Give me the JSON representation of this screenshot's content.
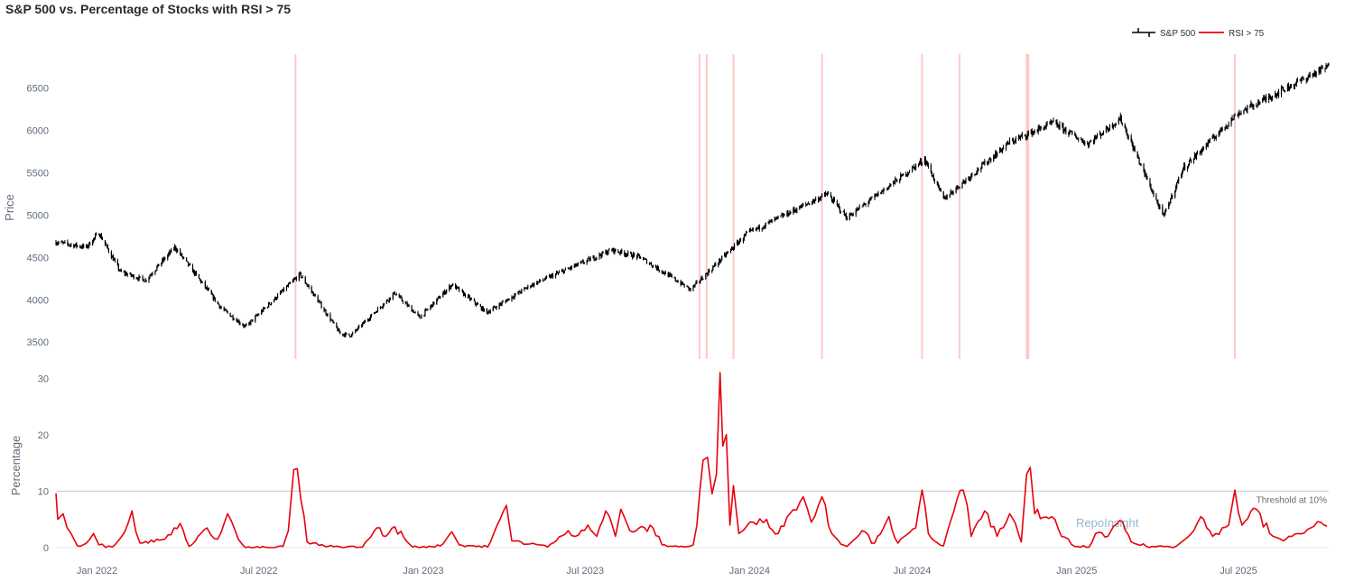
{
  "title": "S&P 500 vs. Percentage of Stocks with RSI > 75",
  "colors": {
    "price": "#000000",
    "rsi": "#e8000b",
    "band": "#ff9a9a",
    "threshold": "#c8c8c8"
  },
  "legend": {
    "price_label": "S&P 500",
    "rsi_label": "RSI > 75"
  },
  "watermark": "RepoInsight",
  "threshold_label": "Threshold at 10%",
  "chart_data": [
    {
      "type": "candlestick",
      "ylabel": "Price",
      "ylim": [
        3300,
        6900
      ],
      "yticks": [
        3500,
        4000,
        4500,
        5000,
        5500,
        6000,
        6500
      ],
      "xlim": [
        "2021-11-16",
        "2025-10-10"
      ],
      "anchors": [
        [
          "2021-11-16",
          4680
        ],
        [
          "2021-12-20",
          4620
        ],
        [
          "2022-01-03",
          4790
        ],
        [
          "2022-01-27",
          4330
        ],
        [
          "2022-02-24",
          4230
        ],
        [
          "2022-03-29",
          4620
        ],
        [
          "2022-05-20",
          3900
        ],
        [
          "2022-06-16",
          3680
        ],
        [
          "2022-08-16",
          4300
        ],
        [
          "2022-09-30",
          3600
        ],
        [
          "2022-10-12",
          3580
        ],
        [
          "2022-11-30",
          4080
        ],
        [
          "2022-12-28",
          3790
        ],
        [
          "2023-02-02",
          4180
        ],
        [
          "2023-03-13",
          3850
        ],
        [
          "2023-05-01",
          4170
        ],
        [
          "2023-07-31",
          4590
        ],
        [
          "2023-09-01",
          4500
        ],
        [
          "2023-10-27",
          4120
        ],
        [
          "2023-12-29",
          4780
        ],
        [
          "2024-03-28",
          5250
        ],
        [
          "2024-04-19",
          4970
        ],
        [
          "2024-07-15",
          5660
        ],
        [
          "2024-08-05",
          5190
        ],
        [
          "2024-10-18",
          5860
        ],
        [
          "2024-12-06",
          6090
        ],
        [
          "2025-01-13",
          5840
        ],
        [
          "2025-02-19",
          6140
        ],
        [
          "2025-04-08",
          4980
        ],
        [
          "2025-04-30",
          5550
        ],
        [
          "2025-06-30",
          6200
        ],
        [
          "2025-10-08",
          6750
        ]
      ],
      "highlight_dates": [
        "2022-08-11",
        "2023-11-06",
        "2023-11-14",
        "2023-12-14",
        "2024-03-22",
        "2024-07-12",
        "2024-08-23",
        "2024-11-06",
        "2024-11-08",
        "2025-06-27"
      ]
    },
    {
      "type": "line",
      "ylabel": "Percentage",
      "ylim": [
        0,
        31
      ],
      "yticks": [
        0,
        10,
        20,
        30
      ],
      "threshold": 10,
      "xticks": [
        {
          "date": "2022-01-01",
          "label": "Jan 2022"
        },
        {
          "date": "2022-07-01",
          "label": "Jul 2022"
        },
        {
          "date": "2023-01-01",
          "label": "Jan 2023"
        },
        {
          "date": "2023-07-01",
          "label": "Jul 2023"
        },
        {
          "date": "2024-01-01",
          "label": "Jan 2024"
        },
        {
          "date": "2024-07-01",
          "label": "Jul 2024"
        },
        {
          "date": "2025-01-01",
          "label": "Jan 2025"
        },
        {
          "date": "2025-07-01",
          "label": "Jul 2025"
        }
      ],
      "points": [
        [
          "2021-11-16",
          9.6
        ],
        [
          "2021-11-18",
          5.0
        ],
        [
          "2021-11-24",
          6.0
        ],
        [
          "2021-12-03",
          2.5
        ],
        [
          "2021-12-10",
          0.3
        ],
        [
          "2021-12-20",
          0.8
        ],
        [
          "2021-12-28",
          2.5
        ],
        [
          "2022-01-03",
          0.5
        ],
        [
          "2022-01-18",
          0.1
        ],
        [
          "2022-02-01",
          2.8
        ],
        [
          "2022-02-09",
          6.5
        ],
        [
          "2022-02-18",
          0.8
        ],
        [
          "2022-03-18",
          1.5
        ],
        [
          "2022-04-04",
          4.3
        ],
        [
          "2022-04-14",
          0.2
        ],
        [
          "2022-05-04",
          3.5
        ],
        [
          "2022-05-16",
          1.5
        ],
        [
          "2022-05-27",
          6.0
        ],
        [
          "2022-06-08",
          1.5
        ],
        [
          "2022-06-16",
          0.0
        ],
        [
          "2022-07-15",
          0.0
        ],
        [
          "2022-07-28",
          0.2
        ],
        [
          "2022-08-03",
          3.0
        ],
        [
          "2022-08-09",
          13.8
        ],
        [
          "2022-08-13",
          14.0
        ],
        [
          "2022-08-17",
          8.5
        ],
        [
          "2022-08-24",
          1.0
        ],
        [
          "2022-09-13",
          0.2
        ],
        [
          "2022-10-25",
          0.1
        ],
        [
          "2022-11-10",
          3.5
        ],
        [
          "2022-11-20",
          2.0
        ],
        [
          "2022-11-30",
          3.7
        ],
        [
          "2022-12-14",
          1.0
        ],
        [
          "2022-12-20",
          0.1
        ],
        [
          "2023-01-20",
          0.3
        ],
        [
          "2023-02-02",
          2.8
        ],
        [
          "2023-02-10",
          0.5
        ],
        [
          "2023-03-14",
          0.1
        ],
        [
          "2023-04-04",
          7.5
        ],
        [
          "2023-04-10",
          1.2
        ],
        [
          "2023-05-10",
          0.5
        ],
        [
          "2023-05-20",
          0.1
        ],
        [
          "2023-06-12",
          3.0
        ],
        [
          "2023-06-20",
          2.0
        ],
        [
          "2023-07-04",
          4.0
        ],
        [
          "2023-07-14",
          2.0
        ],
        [
          "2023-07-24",
          6.5
        ],
        [
          "2023-08-04",
          2.0
        ],
        [
          "2023-08-10",
          6.8
        ],
        [
          "2023-08-20",
          3.0
        ],
        [
          "2023-09-15",
          3.5
        ],
        [
          "2023-09-25",
          0.5
        ],
        [
          "2023-10-20",
          0.1
        ],
        [
          "2023-10-30",
          0.5
        ],
        [
          "2023-11-03",
          4.0
        ],
        [
          "2023-11-10",
          15.5
        ],
        [
          "2023-11-15",
          16.0
        ],
        [
          "2023-11-20",
          9.5
        ],
        [
          "2023-11-25",
          13.0
        ],
        [
          "2023-11-29",
          31.0
        ],
        [
          "2023-12-02",
          18.0
        ],
        [
          "2023-12-06",
          20.0
        ],
        [
          "2023-12-10",
          4.0
        ],
        [
          "2023-12-14",
          11.0
        ],
        [
          "2023-12-20",
          2.5
        ],
        [
          "2024-01-05",
          4.5
        ],
        [
          "2024-01-20",
          5.0
        ],
        [
          "2024-02-02",
          2.5
        ],
        [
          "2024-02-15",
          6.0
        ],
        [
          "2024-03-01",
          9.0
        ],
        [
          "2024-03-10",
          4.5
        ],
        [
          "2024-03-22",
          9.0
        ],
        [
          "2024-04-02",
          2.5
        ],
        [
          "2024-04-19",
          0.2
        ],
        [
          "2024-05-06",
          3.0
        ],
        [
          "2024-05-20",
          0.8
        ],
        [
          "2024-06-05",
          5.5
        ],
        [
          "2024-06-15",
          0.8
        ],
        [
          "2024-07-05",
          3.5
        ],
        [
          "2024-07-12",
          10.2
        ],
        [
          "2024-07-19",
          2.5
        ],
        [
          "2024-08-05",
          0.3
        ],
        [
          "2024-08-20",
          8.5
        ],
        [
          "2024-08-27",
          10.2
        ],
        [
          "2024-09-05",
          2.0
        ],
        [
          "2024-09-20",
          6.5
        ],
        [
          "2024-10-04",
          2.0
        ],
        [
          "2024-10-18",
          6.0
        ],
        [
          "2024-10-31",
          1.0
        ],
        [
          "2024-11-06",
          13.0
        ],
        [
          "2024-11-10",
          14.2
        ],
        [
          "2024-11-15",
          6.0
        ],
        [
          "2024-12-04",
          5.5
        ],
        [
          "2024-12-15",
          2.0
        ],
        [
          "2024-12-30",
          0.2
        ],
        [
          "2025-01-15",
          0.1
        ],
        [
          "2025-01-22",
          2.5
        ],
        [
          "2025-02-05",
          2.0
        ],
        [
          "2025-02-18",
          4.8
        ],
        [
          "2025-03-03",
          1.0
        ],
        [
          "2025-03-20",
          0.2
        ],
        [
          "2025-04-22",
          0.2
        ],
        [
          "2025-05-12",
          3.0
        ],
        [
          "2025-05-20",
          5.5
        ],
        [
          "2025-06-02",
          2.0
        ],
        [
          "2025-06-20",
          4.0
        ],
        [
          "2025-06-27",
          10.2
        ],
        [
          "2025-07-05",
          4.0
        ],
        [
          "2025-07-18",
          7.0
        ],
        [
          "2025-08-05",
          2.5
        ],
        [
          "2025-08-20",
          1.2
        ],
        [
          "2025-09-05",
          2.5
        ],
        [
          "2025-09-20",
          3.5
        ],
        [
          "2025-10-01",
          4.5
        ],
        [
          "2025-10-08",
          3.8
        ]
      ]
    }
  ]
}
